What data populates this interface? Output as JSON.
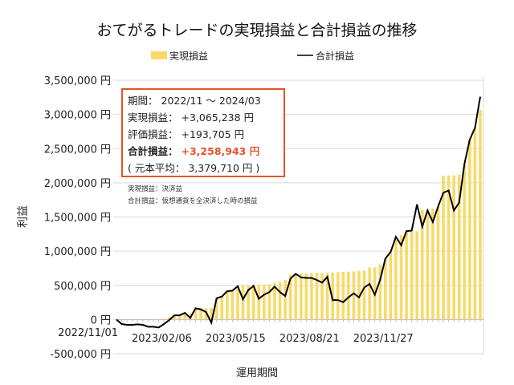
{
  "chart_data": {
    "type": "bar+line",
    "title": "おてがるトレードの実現損益と合計損益の推移",
    "xlabel": "運用期間",
    "ylabel": "利益",
    "ylim": [
      -500000,
      3500000
    ],
    "yticks": [
      -500000,
      0,
      500000,
      1000000,
      1500000,
      2000000,
      2500000,
      3000000,
      3500000
    ],
    "ytick_labels": [
      "-500,000 円",
      "0 円",
      "500,000 円",
      "1,000,000 円",
      "1,500,000 円",
      "2,000,000 円",
      "2,500,000 円",
      "3,000,000 円",
      "3,500,000 円"
    ],
    "xtick_labels": [
      {
        "index": 0,
        "label": "2022/11/01"
      },
      {
        "index": 14,
        "label": "2023/02/06"
      },
      {
        "index": 28,
        "label": "2023/05/15"
      },
      {
        "index": 42,
        "label": "2023/08/21"
      },
      {
        "index": 56,
        "label": "2023/11/27"
      }
    ],
    "grid": true,
    "legend_position": "top",
    "series": [
      {
        "name": "実現損益",
        "type": "bar",
        "color": "#f8d96a",
        "values": [
          0,
          0,
          0,
          0,
          0,
          0,
          0,
          5000,
          5000,
          10000,
          31000,
          50000,
          50000,
          90000,
          90000,
          148000,
          168000,
          168000,
          168000,
          312000,
          344000,
          414000,
          430000,
          480000,
          500000,
          500000,
          508000,
          512000,
          512000,
          520000,
          540000,
          551000,
          578000,
          656000,
          668000,
          676000,
          676000,
          676000,
          680000,
          680000,
          684000,
          688000,
          692000,
          695000,
          700000,
          703000,
          707000,
          715000,
          762000,
          762000,
          805000,
          891000,
          988000,
          1164000,
          1234000,
          1281000,
          1293000,
          1293000,
          1601000,
          1613000,
          1625000,
          1652000,
          2102000,
          2109000,
          2109000,
          2121000,
          2277000,
          2629000,
          2805000,
          3065238
        ]
      },
      {
        "name": "合計損益",
        "type": "line",
        "color": "#000000",
        "values": [
          0,
          -66000,
          -78000,
          -78000,
          -70000,
          -78000,
          -105000,
          -105000,
          -117000,
          -66000,
          -8000,
          62000,
          62000,
          98000,
          23000,
          164000,
          148000,
          109000,
          -47000,
          312000,
          336000,
          414000,
          422000,
          488000,
          297000,
          430000,
          492000,
          305000,
          363000,
          402000,
          480000,
          402000,
          344000,
          598000,
          668000,
          617000,
          609000,
          609000,
          578000,
          539000,
          625000,
          285000,
          285000,
          254000,
          324000,
          383000,
          324000,
          469000,
          520000,
          363000,
          578000,
          891000,
          988000,
          1211000,
          1086000,
          1293000,
          1301000,
          1684000,
          1359000,
          1594000,
          1426000,
          1652000,
          1855000,
          1887000,
          1594000,
          1711000,
          2277000,
          2629000,
          2805000,
          3258943
        ]
      }
    ]
  },
  "info_box": {
    "period_label": "期間：",
    "period_value": "2022/11 ～ 2024/03",
    "realized_label": "実現損益：",
    "realized_value": "+3,065,238 円",
    "unrealized_label": "評価損益：",
    "unrealized_value": "+193,705 円",
    "total_label": "合計損益：",
    "total_value": "+3,258,943 円",
    "principal_text": "( 元本平均： 3,379,710 円 )",
    "accent_color": "#e8522a"
  },
  "notes": [
    "実現損益：決済益",
    "合計損益：仮想通貨を全決済した時の損益"
  ]
}
